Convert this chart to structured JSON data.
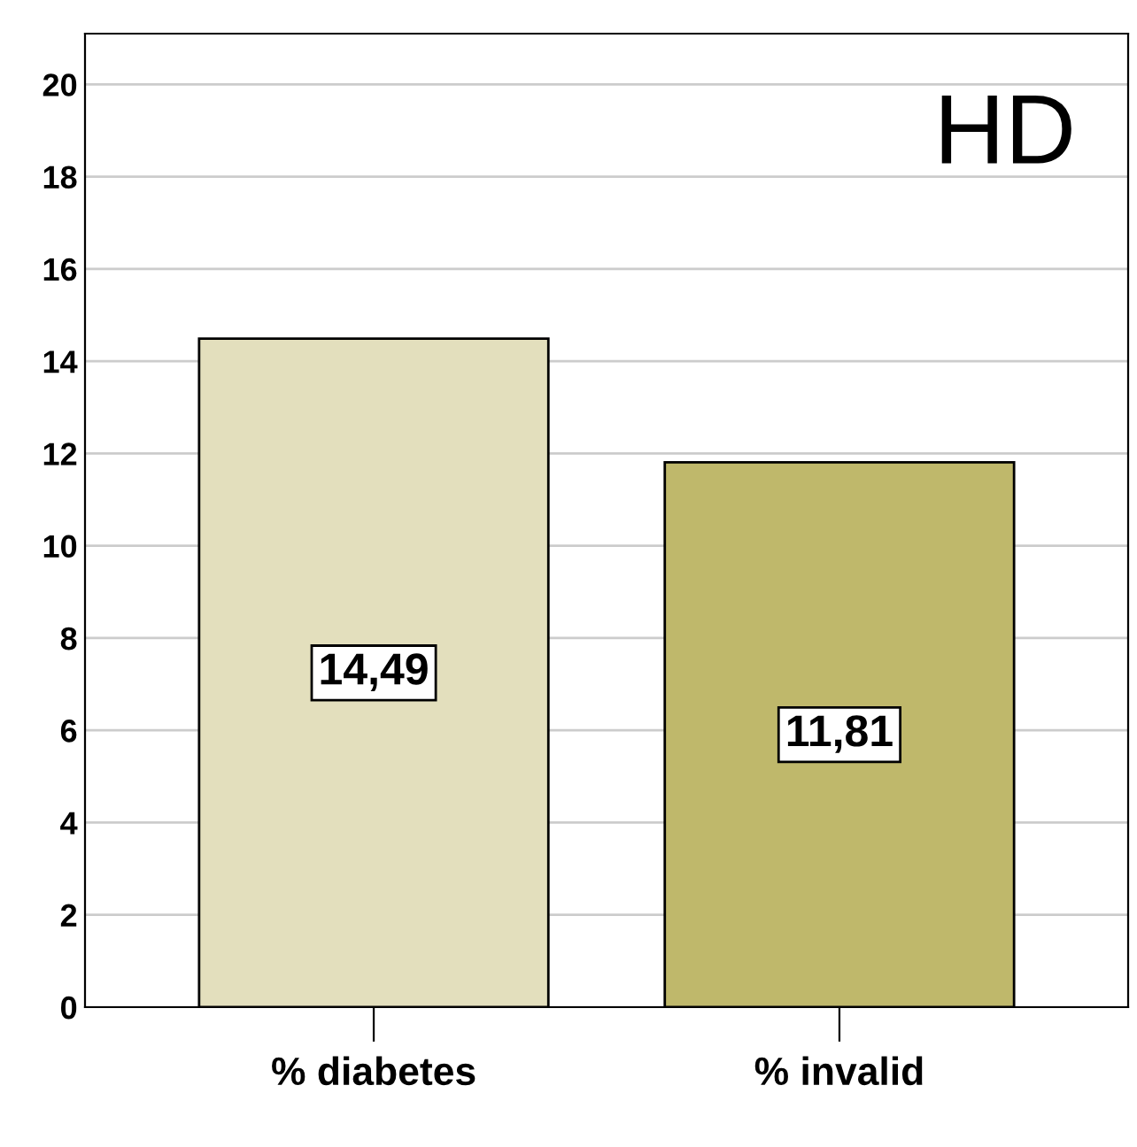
{
  "chart_data": {
    "type": "bar",
    "annotations": [
      "HD"
    ],
    "categories": [
      "% diabetes",
      "% invalid"
    ],
    "values": [
      14.49,
      11.81
    ],
    "colors": [
      "#e3dfbd",
      "#bfb86b"
    ],
    "value_labels": [
      "14,49",
      "11,81"
    ],
    "ylim": [
      0,
      21.1
    ],
    "yticks": [
      0,
      2,
      4,
      6,
      8,
      10,
      12,
      14,
      16,
      18,
      20
    ],
    "grid": "y"
  }
}
